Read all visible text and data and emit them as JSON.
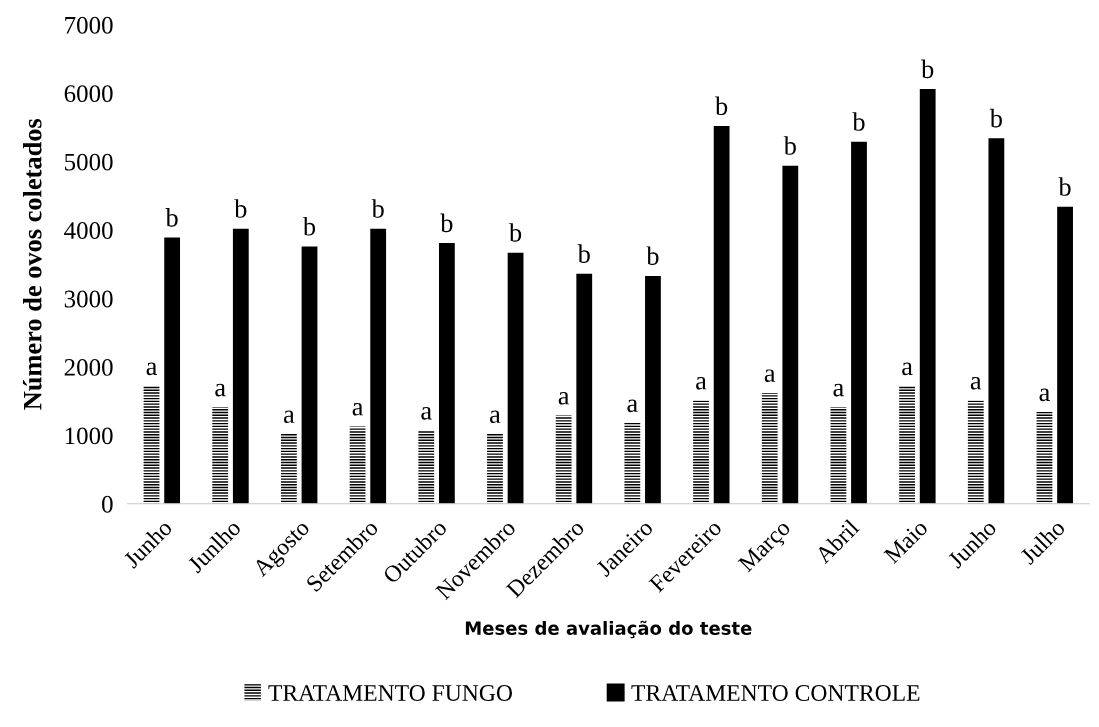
{
  "chart_data": {
    "type": "bar",
    "xlabel": "Meses de avaliação do teste",
    "ylabel": "Número de ovos coletados",
    "categories": [
      "Junho",
      "Junlho",
      "Agosto",
      "Setembro",
      "Outubro",
      "Novembro",
      "Dezembro",
      "Janeiro",
      "Fevereiro",
      "Março",
      "Abril",
      "Maio",
      "Junho",
      "Julho"
    ],
    "series": [
      {
        "name": "TRATAMENTO FUNGO",
        "color": "#000000",
        "values": [
          1720,
          1410,
          1020,
          1130,
          1070,
          1020,
          1290,
          1180,
          1510,
          1620,
          1410,
          1720,
          1510,
          1340
        ],
        "value_labels": [
          "a",
          "a",
          "a",
          "a",
          "a",
          "a",
          "a",
          "a",
          "a",
          "a",
          "a",
          "a",
          "a",
          "a"
        ]
      },
      {
        "name": "TRATAMENTO CONTROLE",
        "color": "#000000",
        "values": [
          3890,
          4020,
          3760,
          4020,
          3810,
          3670,
          3360,
          3330,
          5520,
          4940,
          5290,
          6060,
          5340,
          4340
        ],
        "value_labels": [
          "b",
          "b",
          "b",
          "b",
          "b",
          "b",
          "b",
          "b",
          "b",
          "b",
          "b",
          "b",
          "b",
          "b"
        ]
      }
    ],
    "ylim": [
      0,
      7000
    ],
    "yticks": [
      0,
      1000,
      2000,
      3000,
      4000,
      5000,
      6000,
      7000
    ],
    "grid": false,
    "legend": "bottom"
  }
}
